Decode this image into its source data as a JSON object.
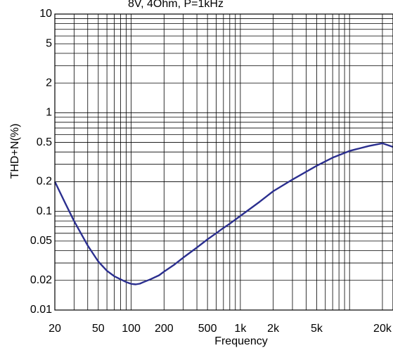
{
  "chart_data": {
    "type": "line",
    "title": "8V, 4Ohm, P=1kHz",
    "xlabel": "Frequency",
    "ylabel": "THD+N(%)",
    "x_scale": "log",
    "y_scale": "log",
    "xlim": [
      20,
      25000
    ],
    "ylim": [
      0.01,
      10
    ],
    "grid": true,
    "x_ticks": [
      {
        "value": 20,
        "label": "20"
      },
      {
        "value": 50,
        "label": "50"
      },
      {
        "value": 100,
        "label": "100"
      },
      {
        "value": 200,
        "label": "200"
      },
      {
        "value": 500,
        "label": "500"
      },
      {
        "value": 1000,
        "label": "1k"
      },
      {
        "value": 2000,
        "label": "2k"
      },
      {
        "value": 5000,
        "label": "5k"
      },
      {
        "value": 20000,
        "label": "20k"
      }
    ],
    "y_ticks": [
      {
        "value": 0.01,
        "label": "0.01"
      },
      {
        "value": 0.02,
        "label": "0.02"
      },
      {
        "value": 0.05,
        "label": "0.05"
      },
      {
        "value": 0.1,
        "label": "0.1"
      },
      {
        "value": 0.2,
        "label": "0.2"
      },
      {
        "value": 0.5,
        "label": "0.5"
      },
      {
        "value": 1,
        "label": "1"
      },
      {
        "value": 2,
        "label": "2"
      },
      {
        "value": 5,
        "label": "5"
      },
      {
        "value": 10,
        "label": "10"
      }
    ],
    "series": [
      {
        "color": "#2b2f8f",
        "x": [
          20,
          25,
          30,
          40,
          50,
          60,
          70,
          80,
          90,
          100,
          110,
          120,
          130,
          150,
          180,
          200,
          250,
          300,
          400,
          500,
          600,
          700,
          800,
          1000,
          1500,
          2000,
          3000,
          5000,
          7000,
          10000,
          15000,
          20000,
          25000
        ],
        "y": [
          0.2,
          0.12,
          0.08,
          0.045,
          0.031,
          0.025,
          0.022,
          0.0205,
          0.0192,
          0.0184,
          0.0182,
          0.0185,
          0.0192,
          0.0205,
          0.0225,
          0.0245,
          0.029,
          0.034,
          0.043,
          0.052,
          0.06,
          0.068,
          0.075,
          0.09,
          0.125,
          0.16,
          0.21,
          0.29,
          0.35,
          0.41,
          0.46,
          0.49,
          0.45
        ]
      }
    ]
  }
}
